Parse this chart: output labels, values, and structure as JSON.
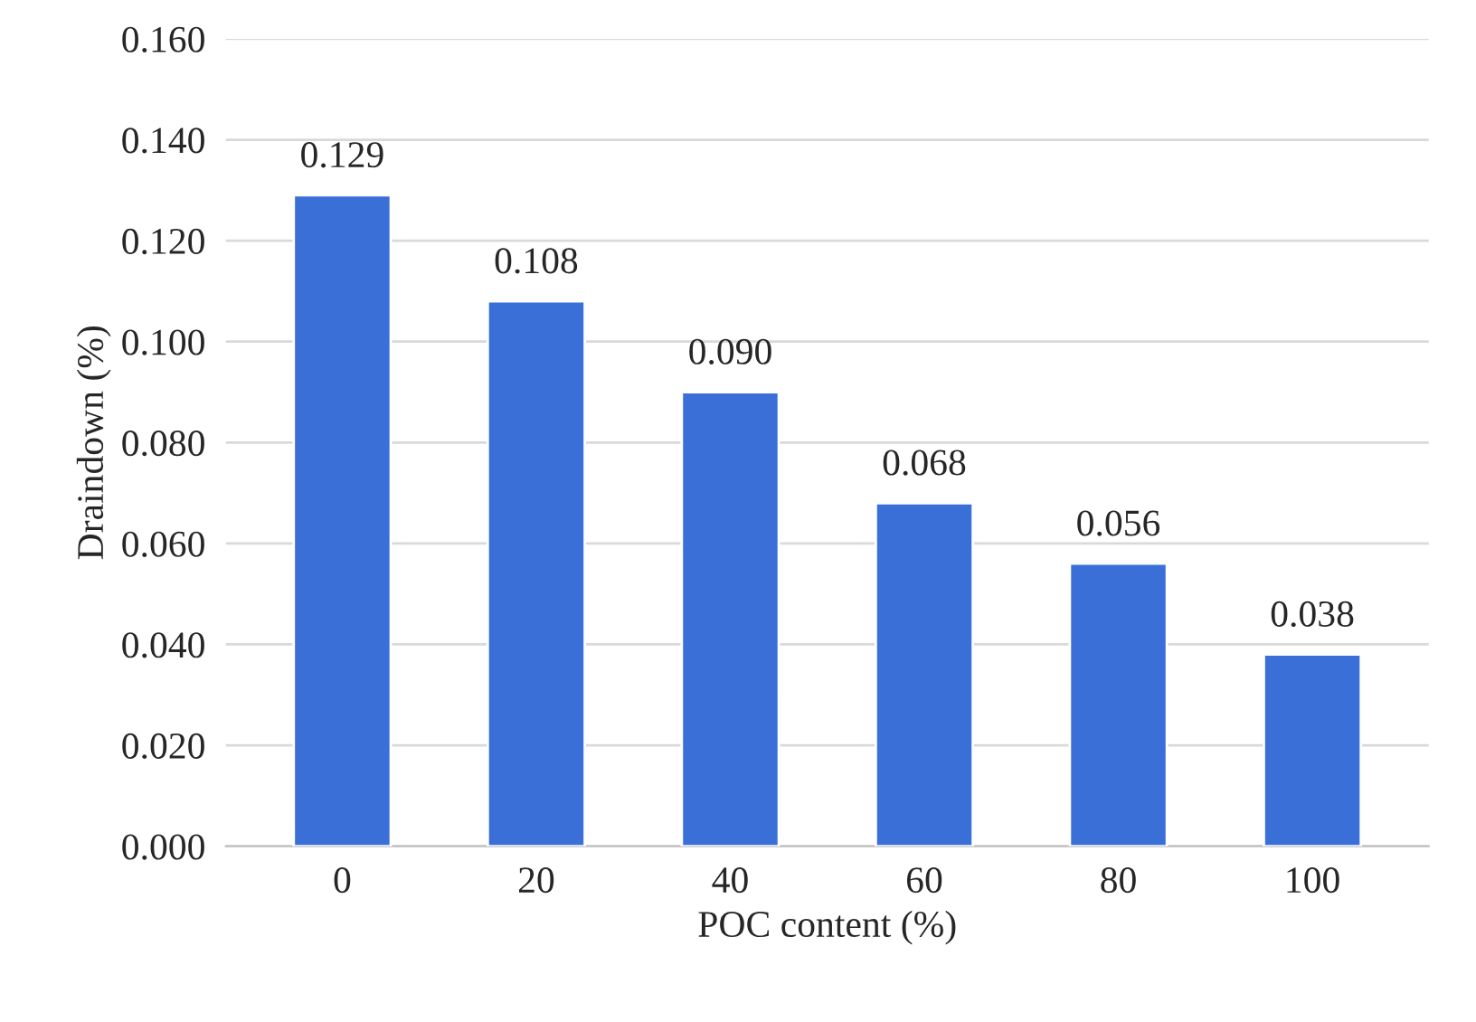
{
  "chart_data": {
    "type": "bar",
    "xlabel": "POC content (%)",
    "ylabel": "Draindown (%)",
    "categories": [
      "0",
      "20",
      "40",
      "60",
      "80",
      "100"
    ],
    "values": [
      0.129,
      0.108,
      0.09,
      0.068,
      0.056,
      0.038
    ],
    "value_labels": [
      "0.129",
      "0.108",
      "0.090",
      "0.068",
      "0.056",
      "0.038"
    ],
    "color": "#3a6fd8",
    "ylim": [
      0,
      0.16
    ],
    "yticks": [
      {
        "value": 0,
        "label": "0.000"
      },
      {
        "value": 0.02,
        "label": "0.020"
      },
      {
        "value": 0.04,
        "label": "0.040"
      },
      {
        "value": 0.06,
        "label": "0.060"
      },
      {
        "value": 0.08,
        "label": "0.080"
      },
      {
        "value": 0.1,
        "label": "0.100"
      },
      {
        "value": 0.12,
        "label": "0.120"
      },
      {
        "value": 0.14,
        "label": "0.140"
      },
      {
        "value": 0.16,
        "label": "0.160"
      }
    ],
    "grid": "y",
    "legend": false
  }
}
